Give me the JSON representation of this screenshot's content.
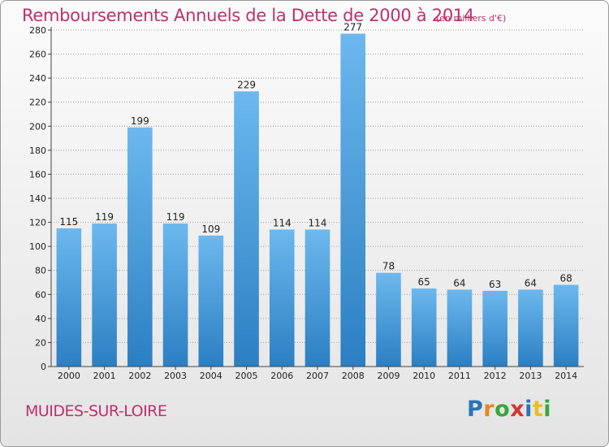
{
  "header": {
    "title": "Remboursements Annuels de la Dette de 2000 à 2014",
    "unit": "(en milliers d'€)"
  },
  "footer": {
    "place": "MUIDES-SUR-LOIRE",
    "logo": "Proxiti",
    "logo_colors": [
      "#2a74b8",
      "#e8871e",
      "#3aa53a",
      "#d6342f",
      "#2a74b8",
      "#e8c11e",
      "#3aa53a"
    ]
  },
  "colors": {
    "bar_light": "#6cb8ee",
    "bar_dark": "#2b7fc2",
    "grid": "#a0a0a0",
    "title": "#c0306b"
  },
  "chart_data": {
    "type": "bar",
    "title": "Remboursements Annuels de la Dette de 2000 à 2014",
    "xlabel": "",
    "ylabel": "",
    "ylim": [
      0,
      280
    ],
    "ytick_step": 20,
    "grid": true,
    "categories": [
      "2000",
      "2001",
      "2002",
      "2003",
      "2004",
      "2005",
      "2006",
      "2007",
      "2008",
      "2009",
      "2010",
      "2011",
      "2012",
      "2013",
      "2014"
    ],
    "values": [
      115,
      119,
      199,
      119,
      109,
      229,
      114,
      114,
      277,
      78,
      65,
      64,
      63,
      64,
      68
    ]
  }
}
